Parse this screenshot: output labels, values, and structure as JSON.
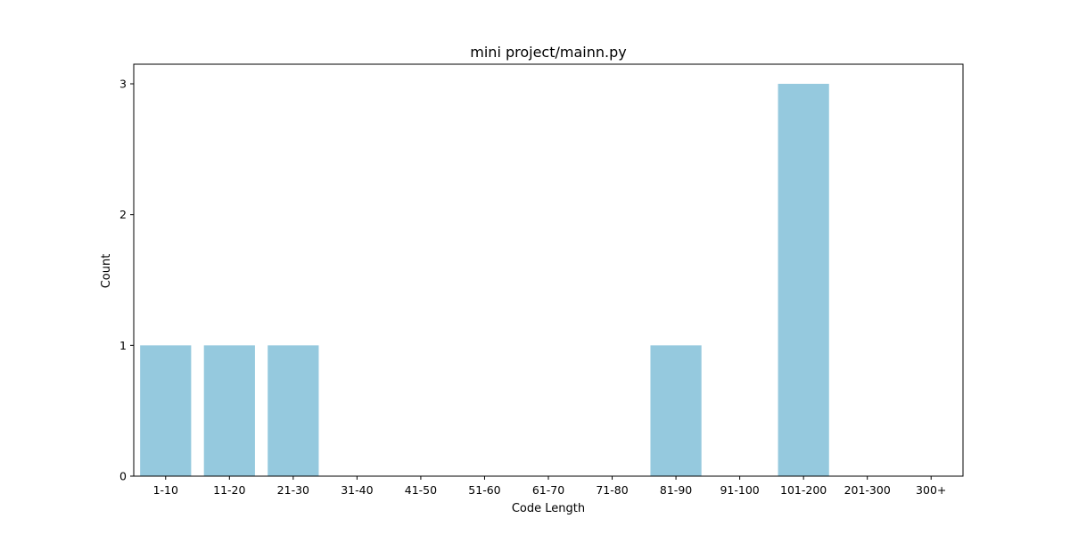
{
  "chart_data": {
    "type": "bar",
    "title": "mini project/mainn.py",
    "xlabel": "Code Length",
    "ylabel": "Count",
    "categories": [
      "1-10",
      "11-20",
      "21-30",
      "31-40",
      "41-50",
      "51-60",
      "61-70",
      "71-80",
      "81-90",
      "91-100",
      "101-200",
      "201-300",
      "300+"
    ],
    "values": [
      1,
      1,
      1,
      0,
      0,
      0,
      0,
      0,
      1,
      0,
      3,
      0,
      0
    ],
    "ylim": [
      0,
      3.15
    ],
    "yticks": [
      0,
      1,
      2,
      3
    ],
    "bar_color": "#95c9de",
    "grid": false,
    "legend": "none"
  }
}
